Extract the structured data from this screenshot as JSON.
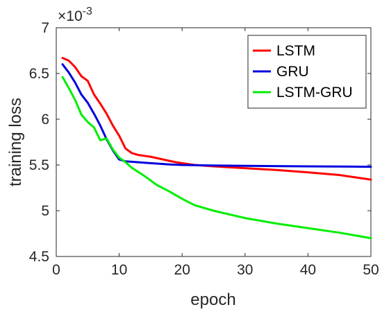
{
  "chart_data": {
    "type": "line",
    "xlabel": "epoch",
    "ylabel": "training loss",
    "exponent_label": "×10",
    "exponent_power": "-3",
    "xlim": [
      0,
      50
    ],
    "ylim": [
      4.5,
      7
    ],
    "xticks": [
      "0",
      "10",
      "20",
      "30",
      "40",
      "50"
    ],
    "yticks": [
      "4.5",
      "5",
      "5.5",
      "6",
      "6.5",
      "7"
    ],
    "legend_position": "top-right",
    "series": [
      {
        "name": "LSTM",
        "color": "#ff0000",
        "x": [
          1,
          2,
          3,
          4,
          5,
          6,
          7,
          8,
          9,
          10,
          11,
          12,
          13,
          14,
          15,
          16,
          17,
          18,
          19,
          20,
          22,
          25,
          30,
          35,
          40,
          45,
          50
        ],
        "y": [
          6.67,
          6.64,
          6.57,
          6.47,
          6.42,
          6.27,
          6.17,
          6.06,
          5.93,
          5.82,
          5.68,
          5.63,
          5.61,
          5.6,
          5.59,
          5.575,
          5.56,
          5.545,
          5.53,
          5.52,
          5.5,
          5.485,
          5.465,
          5.445,
          5.42,
          5.39,
          5.34
        ]
      },
      {
        "name": "GRU",
        "color": "#0000dd",
        "x": [
          1,
          2,
          3,
          4,
          5,
          6,
          7,
          8,
          9,
          10,
          11,
          12,
          14,
          16,
          18,
          20,
          25,
          30,
          40,
          50
        ],
        "y": [
          6.6,
          6.51,
          6.4,
          6.27,
          6.18,
          6.06,
          5.93,
          5.78,
          5.66,
          5.56,
          5.54,
          5.535,
          5.525,
          5.515,
          5.505,
          5.5,
          5.495,
          5.49,
          5.485,
          5.48
        ]
      },
      {
        "name": "LSTM-GRU",
        "color": "#00ee00",
        "x": [
          1,
          2,
          3,
          4,
          5,
          6,
          7,
          7.5,
          8,
          9,
          10,
          11,
          12,
          14,
          16,
          18,
          20,
          22,
          25,
          30,
          35,
          40,
          45,
          50
        ],
        "y": [
          6.46,
          6.34,
          6.21,
          6.05,
          5.97,
          5.91,
          5.77,
          5.78,
          5.79,
          5.67,
          5.58,
          5.53,
          5.47,
          5.38,
          5.28,
          5.21,
          5.13,
          5.06,
          5.0,
          4.92,
          4.86,
          4.81,
          4.76,
          4.7
        ]
      }
    ]
  }
}
